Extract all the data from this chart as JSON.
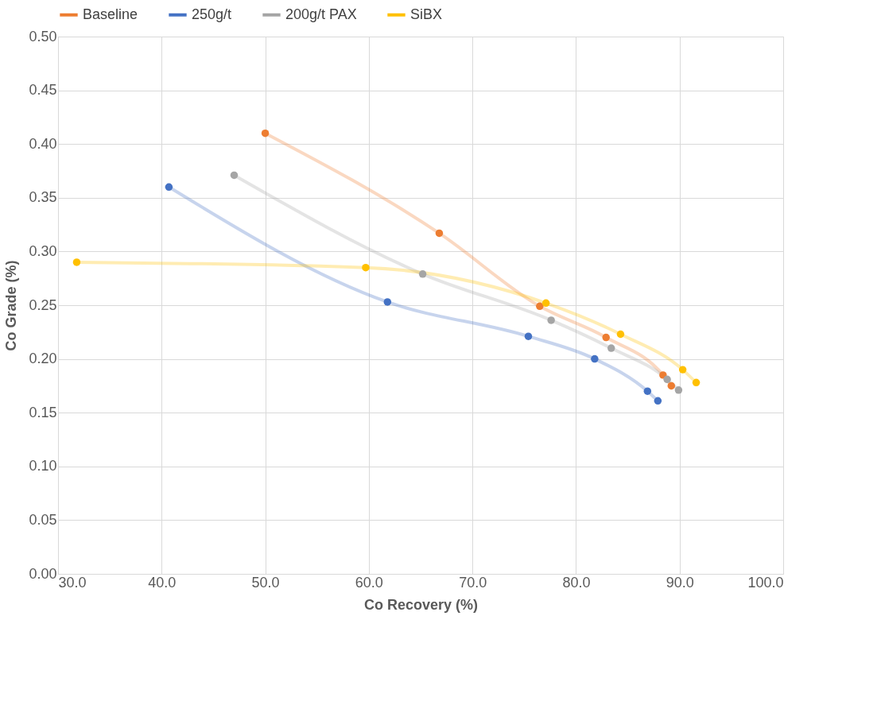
{
  "chart_data": {
    "type": "line",
    "xlabel": "Co Recovery (%)",
    "ylabel": "Co Grade (%)",
    "xlim": [
      30,
      100
    ],
    "ylim": [
      0,
      0.5
    ],
    "xticks": [
      {
        "value": 30,
        "label": "30.0"
      },
      {
        "value": 40,
        "label": "40.0"
      },
      {
        "value": 50,
        "label": "50.0"
      },
      {
        "value": 60,
        "label": "60.0"
      },
      {
        "value": 70,
        "label": "70.0"
      },
      {
        "value": 80,
        "label": "80.0"
      },
      {
        "value": 90,
        "label": "90.0"
      },
      {
        "value": 100,
        "label": "100.0"
      }
    ],
    "yticks": [
      {
        "value": 0,
        "label": "0.00"
      },
      {
        "value": 0.05,
        "label": "0.05"
      },
      {
        "value": 0.1,
        "label": "0.10"
      },
      {
        "value": 0.15,
        "label": "0.15"
      },
      {
        "value": 0.2,
        "label": "0.20"
      },
      {
        "value": 0.25,
        "label": "0.25"
      },
      {
        "value": 0.3,
        "label": "0.30"
      },
      {
        "value": 0.35,
        "label": "0.35"
      },
      {
        "value": 0.4,
        "label": "0.40"
      },
      {
        "value": 0.45,
        "label": "0.45"
      },
      {
        "value": 0.5,
        "label": "0.50"
      }
    ],
    "grid": true,
    "legend": "top",
    "marker": "circle",
    "line_style": "solid",
    "series": [
      {
        "name": "Baseline",
        "color": "#ed7d31",
        "x": [
          50.0,
          66.8,
          76.5,
          82.9,
          88.4,
          89.2
        ],
        "values": [
          0.41,
          0.317,
          0.249,
          0.22,
          0.185,
          0.175
        ]
      },
      {
        "name": "250g/t",
        "color": "#4472c4",
        "x": [
          40.7,
          61.8,
          75.4,
          81.8,
          86.9,
          87.9
        ],
        "values": [
          0.36,
          0.253,
          0.221,
          0.2,
          0.17,
          0.161
        ]
      },
      {
        "name": "200g/t PAX",
        "color": "#a5a5a5",
        "x": [
          47.0,
          65.2,
          77.6,
          83.4,
          88.8,
          89.9
        ],
        "values": [
          0.371,
          0.279,
          0.236,
          0.21,
          0.181,
          0.171
        ]
      },
      {
        "name": "SiBX",
        "color": "#ffc000",
        "x": [
          31.8,
          59.7,
          77.1,
          84.3,
          90.3,
          91.6
        ],
        "values": [
          0.29,
          0.285,
          0.252,
          0.223,
          0.19,
          0.178
        ]
      }
    ]
  }
}
